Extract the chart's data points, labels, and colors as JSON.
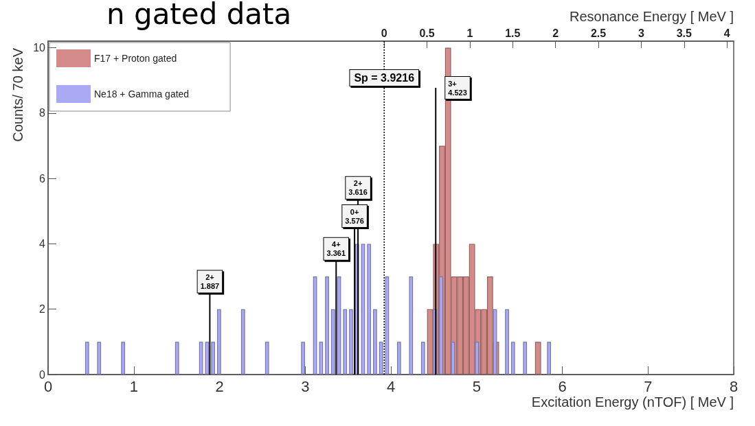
{
  "chart_data": {
    "type": "histogram",
    "title": "n gated data",
    "xlabel": "Excitation Energy (nTOF) [ MeV ]",
    "ylabel": "Counts/ 70 keV",
    "x2label": "Resonance Energy [ MeV ]",
    "bins": [
      0,
      0.07,
      0.14,
      0.21,
      0.28,
      0.35,
      0.42,
      0.49,
      0.56,
      0.63,
      0.7,
      0.77,
      0.84,
      0.91,
      0.98,
      1.05,
      1.12,
      1.19,
      1.26,
      1.33,
      1.4,
      1.47,
      1.54,
      1.61,
      1.68,
      1.75,
      1.82,
      1.89,
      1.96,
      2.03,
      2.1,
      2.17,
      2.24,
      2.31,
      2.38,
      2.45,
      2.52,
      2.59,
      2.66,
      2.73,
      2.8,
      2.87,
      2.94,
      3.01,
      3.08,
      3.15,
      3.22,
      3.29,
      3.36,
      3.43,
      3.5,
      3.57,
      3.64,
      3.71,
      3.78,
      3.85,
      3.92,
      3.99,
      4.06,
      4.13,
      4.2,
      4.27,
      4.34,
      4.41,
      4.48,
      4.55,
      4.62,
      4.69,
      4.76,
      4.83,
      4.9,
      4.97,
      5.04,
      5.11,
      5.18,
      5.25,
      5.32,
      5.39,
      5.46,
      5.53,
      5.6,
      5.67,
      5.74,
      5.81,
      5.88,
      5.95
    ],
    "series": [
      {
        "name": "F17 + Proton gated",
        "color": "#d48a88",
        "values": [
          0,
          0,
          0,
          0,
          0,
          0,
          0,
          0,
          0,
          0,
          0,
          0,
          0,
          0,
          0,
          0,
          0,
          0,
          0,
          0,
          0,
          0,
          0,
          0,
          0,
          0,
          0,
          0,
          0,
          0,
          0,
          0,
          0,
          0,
          0,
          0,
          0,
          0,
          0,
          0,
          0,
          0,
          0,
          0,
          0,
          0,
          0,
          0,
          0,
          0,
          0,
          0,
          0,
          0,
          0,
          0,
          0,
          0,
          0,
          0,
          0,
          0,
          0,
          2,
          4,
          7,
          10,
          3,
          3,
          3,
          4,
          2,
          2,
          3,
          1,
          0,
          0,
          0,
          0,
          0,
          0,
          1,
          0,
          0,
          0
        ]
      },
      {
        "name": "Ne18 + Gamma gated",
        "color": "#aaaaf4",
        "values": [
          0,
          0,
          0,
          0,
          0,
          0,
          1,
          0,
          1,
          0,
          0,
          0,
          1,
          0,
          0,
          0,
          0,
          0,
          0,
          0,
          0,
          1,
          0,
          0,
          0,
          1,
          1,
          1,
          2,
          0,
          0,
          0,
          2,
          0,
          0,
          0,
          1,
          0,
          0,
          0,
          0,
          0,
          1,
          0,
          3,
          1,
          3,
          2,
          3,
          2,
          2,
          4,
          4,
          4,
          2,
          1,
          3,
          0,
          1,
          0,
          3,
          0,
          1,
          0,
          2,
          3,
          0,
          1,
          0,
          0,
          0,
          1,
          0,
          0,
          2,
          0,
          2,
          1,
          0,
          1,
          0,
          0,
          0,
          1,
          0
        ]
      }
    ],
    "xlim": [
      0,
      8
    ],
    "xticks": [
      0,
      1,
      2,
      3,
      4,
      5,
      6,
      7,
      8
    ],
    "ylim": [
      0,
      10.2
    ],
    "yticks": [
      0,
      2,
      4,
      6,
      8,
      10
    ],
    "x2lim": [
      -3.9216,
      4.0784
    ],
    "x2ticks": [
      0,
      0.5,
      1,
      1.5,
      2,
      2.5,
      3,
      3.5,
      4
    ],
    "ref_lines": [
      {
        "axis": "x",
        "value": 3.9216,
        "label": "Sp = 3.9216",
        "line_style": "dotted",
        "color": "#000000"
      },
      {
        "axis": "x",
        "value": 1.887,
        "label": "2+\n1.887",
        "line_style": "solid",
        "color": "#000000"
      },
      {
        "axis": "x",
        "value": 3.361,
        "label": "4+\n3.361",
        "line_style": "solid",
        "color": "#000000"
      },
      {
        "axis": "x",
        "value": 3.576,
        "label": "0+\n3.576",
        "line_style": "solid",
        "color": "#000000"
      },
      {
        "axis": "x",
        "value": 3.616,
        "label": "2+\n3.616",
        "line_style": "solid",
        "color": "#000000"
      },
      {
        "axis": "x",
        "value": 4.523,
        "label": "3+\n4.523",
        "line_style": "solid",
        "color": "#000000"
      }
    ],
    "legend": "top left",
    "grid": false
  }
}
